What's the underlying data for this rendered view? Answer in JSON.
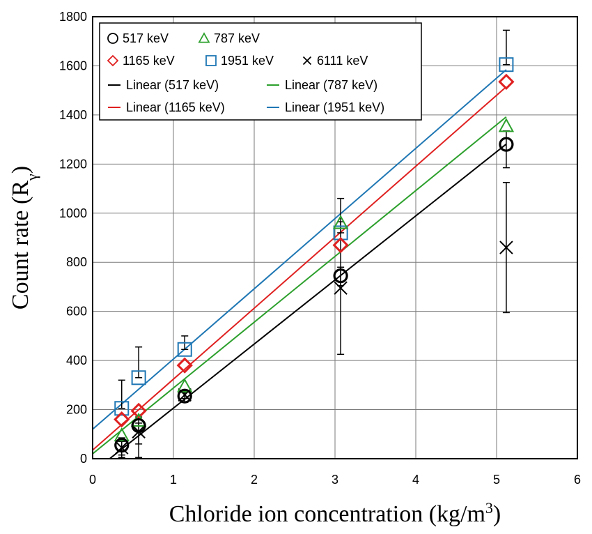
{
  "chart_data": {
    "type": "scatter",
    "xlabel": "Chloride ion concentration (kg/m³)",
    "ylabel": "Count rate (Rγ)",
    "xlim": [
      0,
      6
    ],
    "ylim": [
      0,
      1800
    ],
    "xticks": [
      0,
      1,
      2,
      3,
      4,
      5,
      6
    ],
    "yticks": [
      0,
      200,
      400,
      600,
      800,
      1000,
      1200,
      1400,
      1600,
      1800
    ],
    "grid": true,
    "legend_position": "top-left",
    "series": [
      {
        "name": "517 keV",
        "marker": "circle",
        "color": "#000000",
        "x": [
          0.36,
          0.57,
          1.14,
          3.07,
          5.12
        ],
        "y": [
          55,
          135,
          255,
          745,
          1280
        ],
        "yerr": [
          [
            40,
            15
          ],
          [
            75,
            10
          ],
          [
            25,
            15
          ],
          [
            40,
            35
          ],
          [
            95,
            55
          ]
        ]
      },
      {
        "name": "787 keV",
        "marker": "triangle",
        "color": "#2ca02c",
        "x": [
          0.36,
          0.57,
          1.14,
          3.07,
          5.12
        ],
        "y": [
          95,
          155,
          295,
          960,
          1355
        ],
        "yerr": [
          [
            0,
            0
          ],
          [
            0,
            0
          ],
          [
            0,
            0
          ],
          [
            0,
            0
          ],
          [
            0,
            0
          ]
        ]
      },
      {
        "name": "1165 keV",
        "marker": "diamond",
        "color": "#e02020",
        "x": [
          0.36,
          0.57,
          1.14,
          3.07,
          5.12
        ],
        "y": [
          160,
          195,
          380,
          870,
          1535
        ],
        "yerr": [
          [
            0,
            0
          ],
          [
            0,
            0
          ],
          [
            0,
            0
          ],
          [
            0,
            0
          ],
          [
            0,
            0
          ]
        ]
      },
      {
        "name": "1951 keV",
        "marker": "square",
        "color": "#1f77b4",
        "x": [
          0.36,
          0.57,
          1.14,
          3.07,
          5.12
        ],
        "y": [
          205,
          330,
          445,
          920,
          1605
        ],
        "yerr": [
          [
            0,
            115
          ],
          [
            0,
            125
          ],
          [
            0,
            55
          ],
          [
            0,
            140
          ],
          [
            0,
            140
          ]
        ]
      },
      {
        "name": "6111 keV",
        "marker": "x",
        "color": "#000000",
        "x": [
          0.36,
          0.57,
          1.14,
          3.07,
          5.12
        ],
        "y": [
          45,
          110,
          260,
          695,
          860
        ],
        "yerr": [
          [
            40,
            40
          ],
          [
            105,
            60
          ],
          [
            15,
            15
          ],
          [
            270,
            270
          ],
          [
            265,
            265
          ]
        ]
      }
    ],
    "trendlines": [
      {
        "name": "Linear (517 keV)",
        "color": "#000000",
        "slope": 261,
        "intercept": -55
      },
      {
        "name": "Linear (787 keV)",
        "color": "#2ca02c",
        "slope": 268,
        "intercept": 20
      },
      {
        "name": "Linear (1165 keV)",
        "color": "#e02020",
        "slope": 289,
        "intercept": 35
      },
      {
        "name": "Linear (1951 keV)",
        "color": "#1f77b4",
        "slope": 286,
        "intercept": 120
      }
    ]
  }
}
